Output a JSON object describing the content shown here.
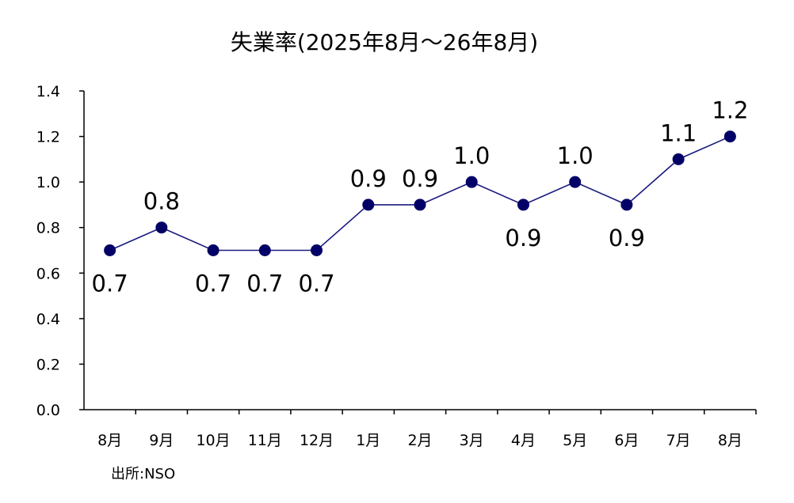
{
  "chart_data": {
    "type": "line",
    "title": "失業率(2025年8月～26年8月)",
    "categories": [
      "8月",
      "9月",
      "10月",
      "11月",
      "12月",
      "1月",
      "2月",
      "3月",
      "4月",
      "5月",
      "6月",
      "7月",
      "8月"
    ],
    "values": [
      0.7,
      0.8,
      0.7,
      0.7,
      0.7,
      0.9,
      0.9,
      1.0,
      0.9,
      1.0,
      0.9,
      1.1,
      1.2
    ],
    "data_labels": [
      "0.7",
      "0.8",
      "0.7",
      "0.7",
      "0.7",
      "0.9",
      "0.9",
      "1.0",
      "0.9",
      "1.0",
      "0.9",
      "1.1",
      "1.2"
    ],
    "label_position": [
      "below",
      "above",
      "below",
      "below",
      "below",
      "above",
      "above",
      "above",
      "below",
      "above",
      "below",
      "above",
      "above"
    ],
    "ylim": [
      0.0,
      1.4
    ],
    "yticks": [
      "0.0",
      "0.2",
      "0.4",
      "0.6",
      "0.8",
      "1.0",
      "1.2",
      "1.4"
    ],
    "xlabel": "",
    "ylabel": "",
    "grid": false,
    "legend": "none",
    "line_color": "#1a1a80",
    "marker_color": "#000066"
  },
  "source": "出所:NSO"
}
